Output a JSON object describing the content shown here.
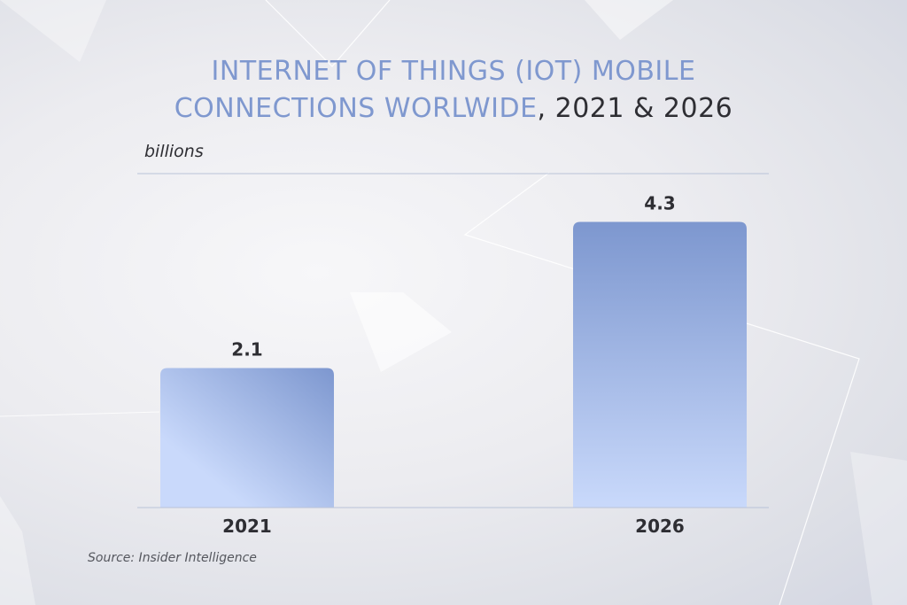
{
  "header": {
    "title_highlight_line1": "INTERNET OF THINGS (IOT) MOBILE",
    "title_highlight_line2": "CONNECTIONS WORLWIDE",
    "title_suffix": ", 2021 & 2026"
  },
  "unit_label": "billions",
  "source": "Source: Insider Intelligence",
  "colors": {
    "title_accent": "#7f98cf",
    "bar_top": "#7d97cf",
    "bar_bottom": "#c9d9fb",
    "axis_line": "#b9c3d8",
    "text_dark": "#2e2e33"
  },
  "chart_data": {
    "type": "bar",
    "categories": [
      "2021",
      "2026"
    ],
    "values": [
      2.1,
      4.3
    ],
    "data_labels": [
      "2.1",
      "4.3"
    ],
    "title": "INTERNET OF THINGS (IOT) MOBILE CONNECTIONS WORLWIDE, 2021 & 2026",
    "xlabel": "",
    "ylabel": "billions",
    "ylim": [
      0,
      5.2
    ],
    "grid": false,
    "legend": "none"
  }
}
